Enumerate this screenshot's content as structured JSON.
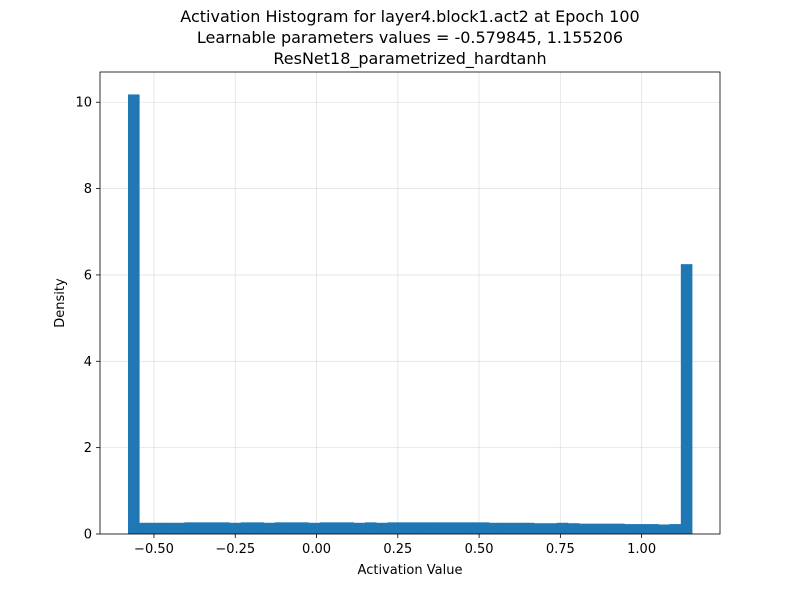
{
  "chart_data": {
    "type": "bar",
    "title_lines": [
      "Activation Histogram for layer4.block1.act2 at Epoch 100",
      "Learnable parameters values = -0.579845, 1.155206",
      "ResNet18_parametrized_hardtanh"
    ],
    "xlabel": "Activation Value",
    "ylabel": "Density",
    "xlim": [
      -0.666,
      1.241
    ],
    "ylim": [
      0,
      10.7
    ],
    "xticks": [
      -0.5,
      -0.25,
      0.0,
      0.25,
      0.5,
      0.75,
      1.0
    ],
    "xtick_labels": [
      "−0.50",
      "−0.25",
      "0.00",
      "0.25",
      "0.50",
      "0.75",
      "1.00"
    ],
    "yticks": [
      0,
      2,
      4,
      6,
      8,
      10
    ],
    "ytick_labels": [
      "0",
      "2",
      "4",
      "6",
      "8",
      "10"
    ],
    "grid": true,
    "bar_color": "#1f77b4",
    "bin_start": -0.579845,
    "bin_end": 1.155206,
    "bin_count": 50,
    "values": [
      10.18,
      0.26,
      0.26,
      0.26,
      0.26,
      0.27,
      0.27,
      0.27,
      0.27,
      0.26,
      0.27,
      0.27,
      0.26,
      0.27,
      0.27,
      0.27,
      0.26,
      0.27,
      0.27,
      0.27,
      0.26,
      0.27,
      0.26,
      0.27,
      0.27,
      0.27,
      0.27,
      0.27,
      0.27,
      0.27,
      0.27,
      0.27,
      0.26,
      0.26,
      0.26,
      0.26,
      0.25,
      0.25,
      0.26,
      0.25,
      0.24,
      0.24,
      0.24,
      0.24,
      0.23,
      0.23,
      0.23,
      0.22,
      0.23,
      6.25
    ]
  }
}
